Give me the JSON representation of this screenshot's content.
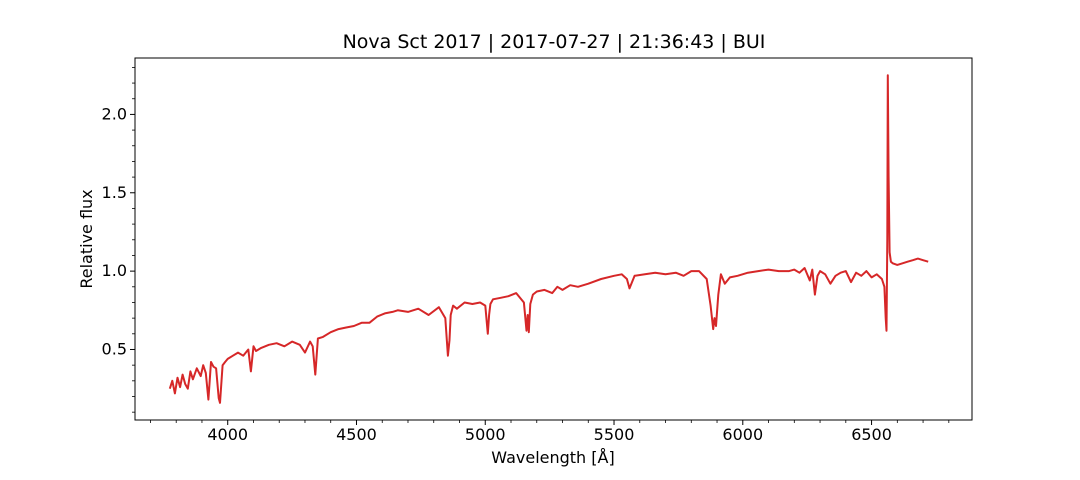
{
  "chart_data": {
    "type": "line",
    "title": "Nova Sct 2017 | 2017-07-27 | 21:36:43 | BUI",
    "xlabel": "Wavelength [Å]",
    "ylabel": "Relative flux",
    "xlim": [
      3640,
      6890
    ],
    "ylim": [
      0.05,
      2.36
    ],
    "x_ticks": [
      4000,
      4500,
      5000,
      5500,
      6000,
      6500
    ],
    "x_tick_labels": [
      "4000",
      "4500",
      "5000",
      "5500",
      "6000",
      "6500"
    ],
    "y_ticks": [
      0.5,
      1.0,
      1.5,
      2.0
    ],
    "y_tick_labels": [
      "0.5",
      "1.0",
      "1.5",
      "2.0"
    ],
    "grid": false,
    "series": [
      {
        "color": "#d62728",
        "x": [
          3775,
          3785,
          3795,
          3805,
          3815,
          3825,
          3835,
          3845,
          3855,
          3865,
          3880,
          3895,
          3905,
          3915,
          3925,
          3935,
          3945,
          3955,
          3965,
          3970,
          3980,
          3990,
          4000,
          4020,
          4040,
          4060,
          4080,
          4090,
          4100,
          4110,
          4130,
          4160,
          4190,
          4220,
          4250,
          4280,
          4300,
          4320,
          4330,
          4340,
          4350,
          4370,
          4400,
          4430,
          4460,
          4490,
          4520,
          4550,
          4580,
          4610,
          4640,
          4660,
          4700,
          4740,
          4780,
          4820,
          4845,
          4855,
          4861,
          4866,
          4875,
          4890,
          4920,
          4950,
          4980,
          5000,
          5010,
          5015,
          5020,
          5030,
          5060,
          5090,
          5120,
          5150,
          5160,
          5165,
          5169,
          5175,
          5185,
          5200,
          5230,
          5260,
          5280,
          5300,
          5330,
          5360,
          5400,
          5450,
          5500,
          5530,
          5550,
          5560,
          5580,
          5620,
          5660,
          5700,
          5740,
          5770,
          5800,
          5830,
          5860,
          5875,
          5885,
          5890,
          5896,
          5905,
          5915,
          5930,
          5950,
          5980,
          6020,
          6060,
          6100,
          6140,
          6180,
          6200,
          6220,
          6240,
          6260,
          6270,
          6280,
          6290,
          6300,
          6320,
          6340,
          6360,
          6380,
          6400,
          6420,
          6440,
          6460,
          6480,
          6500,
          6520,
          6540,
          6550,
          6555,
          6558,
          6561,
          6563,
          6566,
          6570,
          6575,
          6582,
          6600,
          6620,
          6640,
          6660,
          6680,
          6700,
          6720
        ],
        "y": [
          0.25,
          0.3,
          0.22,
          0.32,
          0.26,
          0.34,
          0.28,
          0.25,
          0.36,
          0.31,
          0.38,
          0.33,
          0.4,
          0.35,
          0.18,
          0.42,
          0.39,
          0.38,
          0.19,
          0.16,
          0.4,
          0.42,
          0.44,
          0.46,
          0.48,
          0.46,
          0.5,
          0.36,
          0.52,
          0.49,
          0.51,
          0.53,
          0.54,
          0.52,
          0.55,
          0.53,
          0.48,
          0.55,
          0.52,
          0.34,
          0.57,
          0.58,
          0.61,
          0.63,
          0.64,
          0.65,
          0.67,
          0.67,
          0.71,
          0.73,
          0.74,
          0.75,
          0.74,
          0.76,
          0.72,
          0.77,
          0.7,
          0.46,
          0.56,
          0.72,
          0.78,
          0.76,
          0.8,
          0.79,
          0.8,
          0.78,
          0.6,
          0.72,
          0.79,
          0.82,
          0.83,
          0.84,
          0.86,
          0.8,
          0.62,
          0.72,
          0.61,
          0.79,
          0.85,
          0.87,
          0.88,
          0.86,
          0.9,
          0.88,
          0.91,
          0.9,
          0.92,
          0.95,
          0.97,
          0.98,
          0.95,
          0.89,
          0.97,
          0.98,
          0.99,
          0.98,
          0.99,
          0.97,
          1.0,
          1.0,
          0.95,
          0.78,
          0.63,
          0.7,
          0.65,
          0.85,
          0.98,
          0.92,
          0.96,
          0.97,
          0.99,
          1.0,
          1.01,
          1.0,
          1.0,
          1.01,
          0.99,
          1.02,
          0.94,
          1.01,
          0.85,
          0.97,
          1.0,
          0.98,
          0.92,
          0.97,
          0.99,
          1.0,
          0.93,
          0.99,
          0.97,
          1.0,
          0.96,
          0.98,
          0.95,
          0.9,
          0.7,
          0.62,
          1.2,
          2.25,
          1.6,
          1.12,
          1.06,
          1.05,
          1.04,
          1.05,
          1.06,
          1.07,
          1.08,
          1.07,
          1.06
        ]
      }
    ]
  }
}
